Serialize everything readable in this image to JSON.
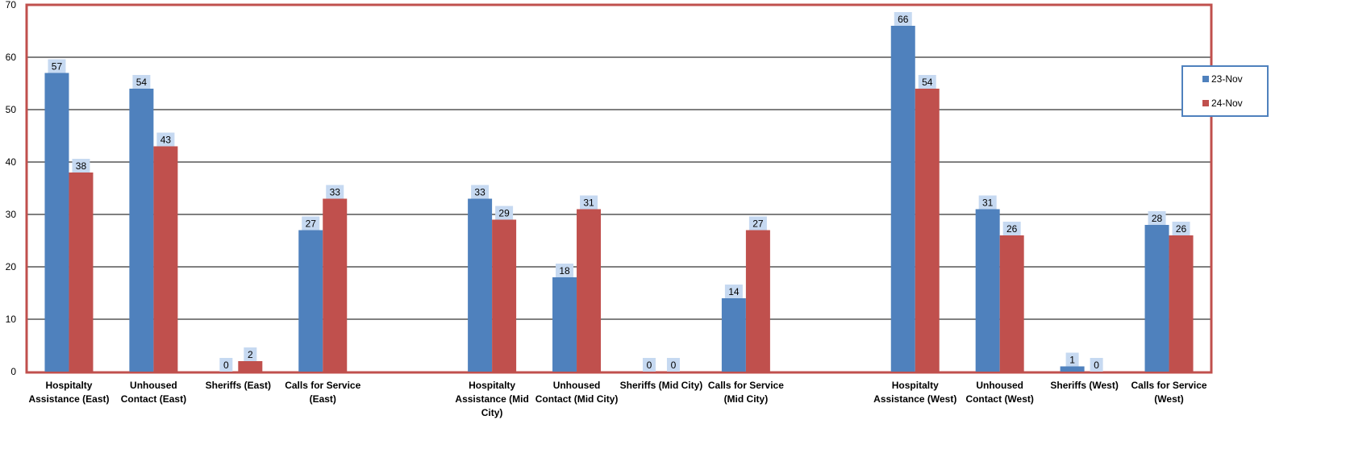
{
  "chart_data": {
    "type": "bar",
    "categories": [
      [
        "Hospitalty",
        "Assistance (East)"
      ],
      [
        "Unhoused",
        "Contact (East)"
      ],
      [
        "Sheriffs (East)"
      ],
      [
        "Calls for Service",
        "(East)"
      ],
      [],
      [
        "Hospitalty",
        "Assistance (Mid",
        "City)"
      ],
      [
        "Unhoused",
        "Contact (Mid City)"
      ],
      [
        "Sheriffs (Mid City)"
      ],
      [
        "Calls for Service",
        "(Mid City)"
      ],
      [],
      [
        "Hospitalty",
        "Assistance (West)"
      ],
      [
        "Unhoused",
        "Contact (West)"
      ],
      [
        "Sheriffs (West)"
      ],
      [
        "Calls for Service",
        "(West)"
      ]
    ],
    "series": [
      {
        "name": "23-Nov",
        "color": "#4F81BD",
        "values": [
          57,
          54,
          0,
          27,
          null,
          33,
          18,
          0,
          14,
          null,
          66,
          31,
          1,
          28
        ]
      },
      {
        "name": "24-Nov",
        "color": "#C0504D",
        "values": [
          38,
          43,
          2,
          33,
          null,
          29,
          31,
          0,
          27,
          null,
          54,
          26,
          0,
          26
        ]
      }
    ],
    "ylim": [
      0,
      70
    ],
    "yticks": [
      0,
      10,
      20,
      30,
      40,
      50,
      60,
      70
    ],
    "grid": true,
    "legend_position": "right",
    "plot_border_color": "#C0504D"
  }
}
